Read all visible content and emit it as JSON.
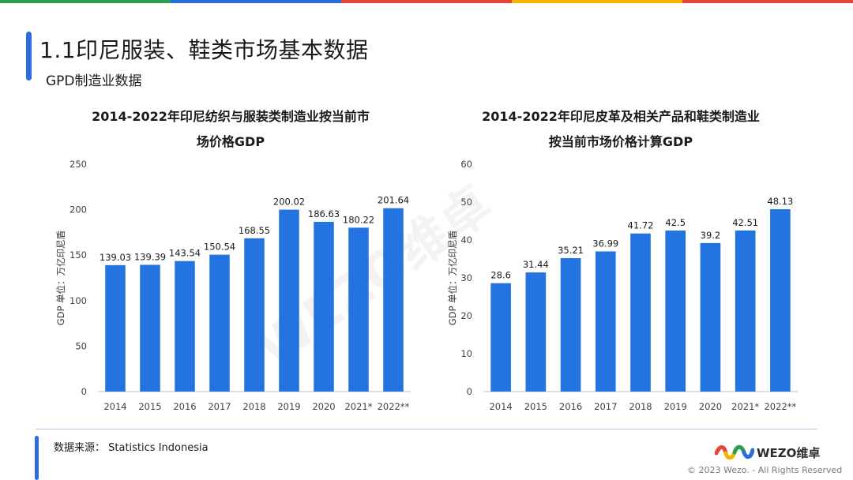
{
  "header": {
    "title": "1.1印尼服装、鞋类市场基本数据",
    "subtitle": "GPD制造业数据",
    "topbar_colors": [
      "#2e9e4f",
      "#2b6ddc",
      "#e8453c",
      "#f4b400",
      "#e8453c"
    ]
  },
  "watermark": "WEZO维卓",
  "chart_data": [
    {
      "type": "bar",
      "title": [
        "2014-2022年印尼纺织与服装类制造业按当前市",
        "场价格GDP"
      ],
      "ylabel": "GDP 单位：万亿印尼盾",
      "categories": [
        "2014",
        "2015",
        "2016",
        "2017",
        "2018",
        "2019",
        "2020",
        "2021*",
        "2022**"
      ],
      "values": [
        139.03,
        139.39,
        143.54,
        150.54,
        168.55,
        200.02,
        186.63,
        180.22,
        201.64
      ],
      "value_labels": [
        "139.03",
        "139.39",
        "143.54",
        "150.54",
        "168.55",
        "200.02",
        "186.63",
        "180.22",
        "201.64"
      ],
      "ylim": [
        0,
        250
      ],
      "yticks": [
        0,
        50,
        100,
        150,
        200,
        250
      ],
      "color": "#2374e1"
    },
    {
      "type": "bar",
      "title": [
        "2014-2022年印尼皮革及相关产品和鞋类制造业",
        "按当前市场价格计算GDP"
      ],
      "ylabel": "GDP 单位：万亿印尼盾",
      "categories": [
        "2014",
        "2015",
        "2016",
        "2017",
        "2018",
        "2019",
        "2020",
        "2021*",
        "2022**"
      ],
      "values": [
        28.6,
        31.44,
        35.21,
        36.99,
        41.72,
        42.5,
        39.2,
        42.51,
        48.13
      ],
      "value_labels": [
        "28.6",
        "31.44",
        "35.21",
        "36.99",
        "41.72",
        "42.5",
        "39.2",
        "42.51",
        "48.13"
      ],
      "ylim": [
        0,
        60
      ],
      "yticks": [
        0,
        10,
        20,
        30,
        40,
        50,
        60
      ],
      "color": "#2374e1"
    }
  ],
  "footer": {
    "source": "数据来源：  Statistics Indonesia",
    "brand": "WEZO维卓",
    "copyright": "© 2023 Wezo. - All Rights Reserved",
    "logo_colors": [
      "#e8453c",
      "#f4b400",
      "#2e9e4f",
      "#2b6ddc"
    ]
  }
}
